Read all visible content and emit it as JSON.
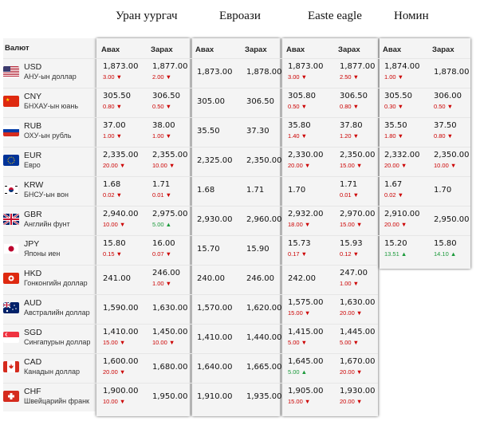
{
  "banks": [
    "Уран уургач",
    "Евроази",
    "Easte eagle",
    "Номин"
  ],
  "columns": {
    "currency": "Валют",
    "buy": "Авах",
    "sell": "Зарах"
  },
  "currencies": [
    {
      "code": "USD",
      "name": "АНУ-ын доллар",
      "flag": "us-flag-icon",
      "b1": [
        "1,873.00",
        "3.00",
        "down"
      ],
      "s1": [
        "1,877.00",
        "2.00",
        "down"
      ],
      "b2": [
        "1,873.00",
        "",
        ""
      ],
      "s2": [
        "1,878.00",
        "",
        ""
      ],
      "b3": [
        "1,873.00",
        "3.00",
        "down"
      ],
      "s3": [
        "1,877.00",
        "2.50",
        "down"
      ],
      "b4": [
        "1,874.00",
        "1.00",
        "down"
      ],
      "s4": [
        "1,878.00",
        "",
        ""
      ]
    },
    {
      "code": "CNY",
      "name": "БНХАУ-ын юань",
      "flag": "cn-flag-icon",
      "b1": [
        "305.50",
        "0.80",
        "down"
      ],
      "s1": [
        "306.50",
        "0.50",
        "down"
      ],
      "b2": [
        "305.00",
        "",
        ""
      ],
      "s2": [
        "306.50",
        "",
        ""
      ],
      "b3": [
        "305.80",
        "0.50",
        "down"
      ],
      "s3": [
        "306.50",
        "0.80",
        "down"
      ],
      "b4": [
        "305.50",
        "0.30",
        "down"
      ],
      "s4": [
        "306.00",
        "0.50",
        "down"
      ]
    },
    {
      "code": "RUB",
      "name": "ОХУ-ын рубль",
      "flag": "ru-flag-icon",
      "b1": [
        "37.00",
        "1.00",
        "down"
      ],
      "s1": [
        "38.00",
        "1.00",
        "down"
      ],
      "b2": [
        "35.50",
        "",
        ""
      ],
      "s2": [
        "37.30",
        "",
        ""
      ],
      "b3": [
        "35.80",
        "1.40",
        "down"
      ],
      "s3": [
        "37.80",
        "1.20",
        "down"
      ],
      "b4": [
        "35.50",
        "1.80",
        "down"
      ],
      "s4": [
        "37.50",
        "0.80",
        "down"
      ]
    },
    {
      "code": "EUR",
      "name": "Евро",
      "flag": "eu-flag-icon",
      "b1": [
        "2,335.00",
        "20.00",
        "down"
      ],
      "s1": [
        "2,355.00",
        "10.00",
        "down"
      ],
      "b2": [
        "2,325.00",
        "",
        ""
      ],
      "s2": [
        "2,350.00",
        "",
        ""
      ],
      "b3": [
        "2,330.00",
        "20.00",
        "down"
      ],
      "s3": [
        "2,350.00",
        "15.00",
        "down"
      ],
      "b4": [
        "2,332.00",
        "20.00",
        "down"
      ],
      "s4": [
        "2,350.00",
        "10.00",
        "down"
      ]
    },
    {
      "code": "KRW",
      "name": "БНСУ-ын вон",
      "flag": "kr-flag-icon",
      "b1": [
        "1.68",
        "0.02",
        "down"
      ],
      "s1": [
        "1.71",
        "0.01",
        "down"
      ],
      "b2": [
        "1.68",
        "",
        ""
      ],
      "s2": [
        "1.71",
        "",
        ""
      ],
      "b3": [
        "1.70",
        "",
        ""
      ],
      "s3": [
        "1.71",
        "0.01",
        "down"
      ],
      "b4": [
        "1.67",
        "0.02",
        "down"
      ],
      "s4": [
        "1.70",
        "",
        ""
      ]
    },
    {
      "code": "GBR",
      "name": "Английн фунт",
      "flag": "gb-flag-icon",
      "b1": [
        "2,940.00",
        "10.00",
        "down"
      ],
      "s1": [
        "2,975.00",
        "5.00",
        "up"
      ],
      "b2": [
        "2,930.00",
        "",
        ""
      ],
      "s2": [
        "2,960.00",
        "",
        ""
      ],
      "b3": [
        "2,932.00",
        "18.00",
        "down"
      ],
      "s3": [
        "2,970.00",
        "15.00",
        "down"
      ],
      "b4": [
        "2,910.00",
        "20.00",
        "down"
      ],
      "s4": [
        "2,950.00",
        "",
        ""
      ]
    },
    {
      "code": "JPY",
      "name": "Японы иен",
      "flag": "jp-flag-icon",
      "b1": [
        "15.80",
        "0.15",
        "down"
      ],
      "s1": [
        "16.00",
        "0.07",
        "down"
      ],
      "b2": [
        "15.70",
        "",
        ""
      ],
      "s2": [
        "15.90",
        "",
        ""
      ],
      "b3": [
        "15.73",
        "0.17",
        "down"
      ],
      "s3": [
        "15.93",
        "0.12",
        "down"
      ],
      "b4": [
        "15.20",
        "13.51",
        "up"
      ],
      "s4": [
        "15.80",
        "14.10",
        "up"
      ]
    },
    {
      "code": "HKD",
      "name": "Гонконгийн доллар",
      "flag": "hk-flag-icon",
      "b1": [
        "241.00",
        "",
        ""
      ],
      "s1": [
        "246.00",
        "1.00",
        "down"
      ],
      "b2": [
        "240.00",
        "",
        ""
      ],
      "s2": [
        "246.00",
        "",
        ""
      ],
      "b3": [
        "242.00",
        "",
        ""
      ],
      "s3": [
        "247.00",
        "1.00",
        "down"
      ]
    },
    {
      "code": "AUD",
      "name": "Австралийн доллар",
      "flag": "au-flag-icon",
      "b1": [
        "1,590.00",
        "",
        ""
      ],
      "s1": [
        "1,630.00",
        "",
        ""
      ],
      "b2": [
        "1,570.00",
        "",
        ""
      ],
      "s2": [
        "1,620.00",
        "",
        ""
      ],
      "b3": [
        "1,575.00",
        "15.00",
        "down"
      ],
      "s3": [
        "1,630.00",
        "20.00",
        "down"
      ]
    },
    {
      "code": "SGD",
      "name": "Сингапурын доллар",
      "flag": "sg-flag-icon",
      "b1": [
        "1,410.00",
        "15.00",
        "down"
      ],
      "s1": [
        "1,450.00",
        "10.00",
        "down"
      ],
      "b2": [
        "1,410.00",
        "",
        ""
      ],
      "s2": [
        "1,440.00",
        "",
        ""
      ],
      "b3": [
        "1,415.00",
        "5.00",
        "down"
      ],
      "s3": [
        "1,445.00",
        "5.00",
        "down"
      ]
    },
    {
      "code": "CAD",
      "name": "Канадын доллар",
      "flag": "ca-flag-icon",
      "b1": [
        "1,600.00",
        "20.00",
        "down"
      ],
      "s1": [
        "1,680.00",
        "",
        ""
      ],
      "b2": [
        "1,640.00",
        "",
        ""
      ],
      "s2": [
        "1,665.00",
        "",
        ""
      ],
      "b3": [
        "1,645.00",
        "5.00",
        "up"
      ],
      "s3": [
        "1,670.00",
        "20.00",
        "down"
      ]
    },
    {
      "code": "CHF",
      "name": "Швейцарийн франк",
      "flag": "ch-flag-icon",
      "b1": [
        "1,900.00",
        "10.00",
        "down"
      ],
      "s1": [
        "1,950.00",
        "",
        ""
      ],
      "b2": [
        "1,910.00",
        "",
        ""
      ],
      "s2": [
        "1,935.00",
        "",
        ""
      ],
      "b3": [
        "1,905.00",
        "15.00",
        "down"
      ],
      "s3": [
        "1,930.00",
        "20.00",
        "down"
      ]
    }
  ],
  "arrows": {
    "down": "▼",
    "up": "▲"
  },
  "colors": {
    "down": "#cc0000",
    "up": "#1a9a3a"
  }
}
